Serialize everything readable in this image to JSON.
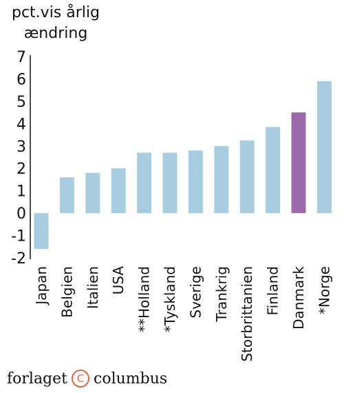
{
  "chart_data": {
    "type": "bar",
    "ylabel_line1": "pct.vis årlig",
    "ylabel_line2": "ændring",
    "ylim": [
      -2,
      7
    ],
    "yticks": [
      "7",
      "6",
      "5",
      "4",
      "3",
      "2",
      "1",
      "0",
      "-1",
      "-2"
    ],
    "categories": [
      "Japan",
      "Belgien",
      "Italien",
      "USA",
      "**Holland",
      "*Tyskland",
      "Sverige",
      "Trankrig",
      "Storbrittanien",
      "Finland",
      "Danmark",
      "*Norge"
    ],
    "values": [
      -1.6,
      1.6,
      1.8,
      2.0,
      2.7,
      2.7,
      2.8,
      3.0,
      3.25,
      3.85,
      4.5,
      5.9
    ],
    "colors": {
      "default": "#a8cde0",
      "highlight": "#9b6aa8",
      "highlight_category": "Danmark"
    }
  },
  "footer": {
    "brand_left": "forlaget",
    "copyright_icon": "copyright-icon",
    "copyright_symbol": "C",
    "brand_right": "columbus"
  }
}
